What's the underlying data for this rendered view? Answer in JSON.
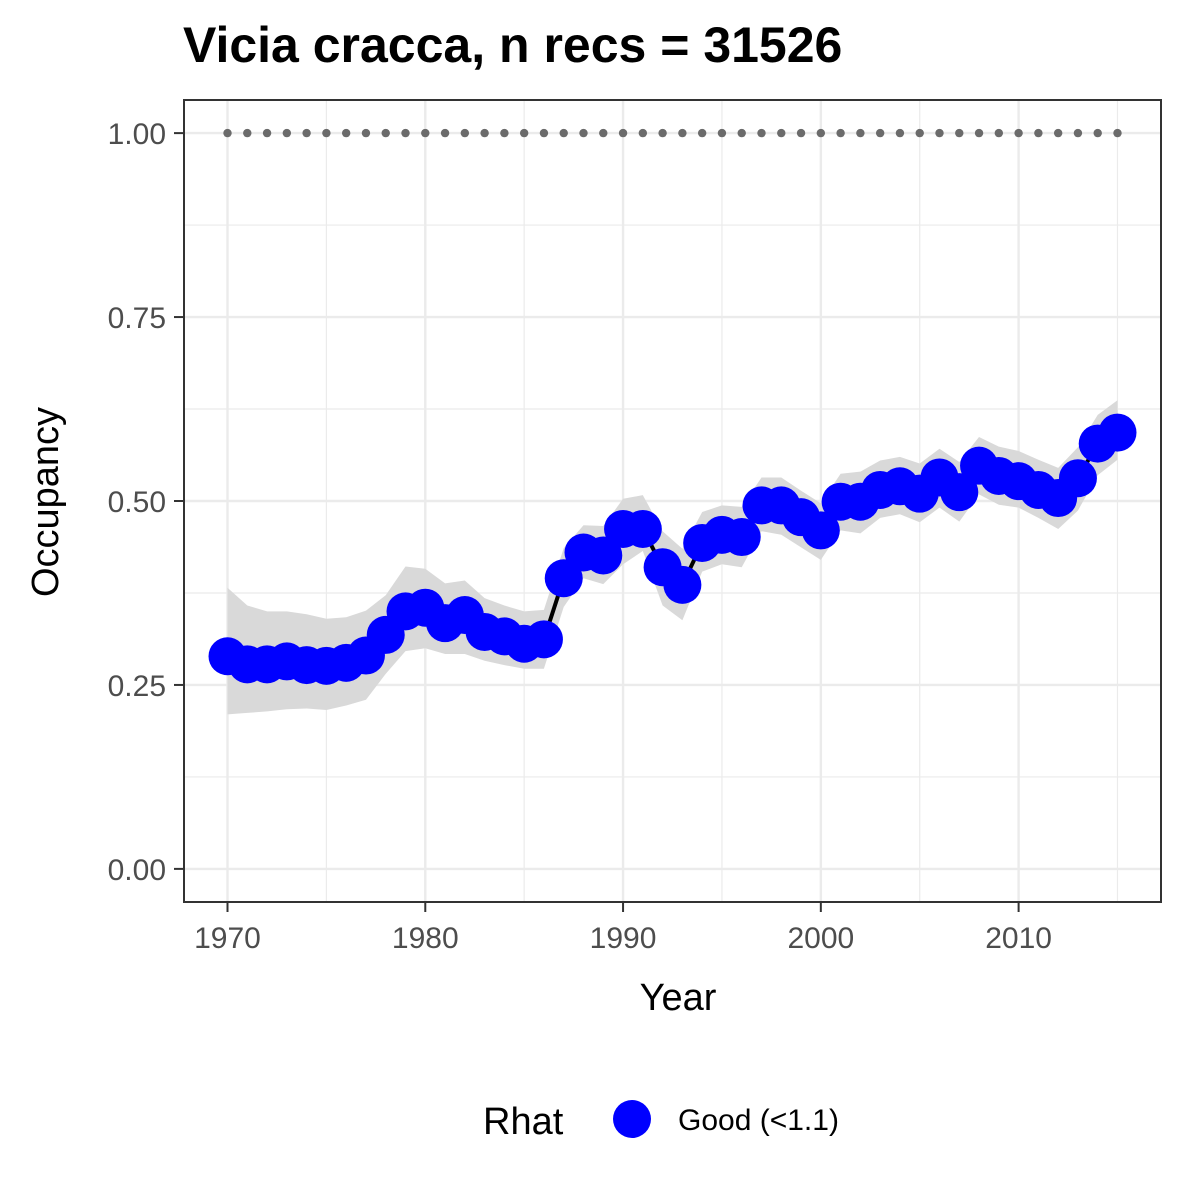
{
  "chart_data": {
    "type": "line",
    "title": "Vicia cracca, n recs = 31526",
    "xlabel": "Year",
    "ylabel": "Occupancy",
    "xlim": [
      1967.8,
      2017.2
    ],
    "ylim": [
      -0.045,
      1.045
    ],
    "x_ticks": [
      1970,
      1980,
      1990,
      2000,
      2010
    ],
    "x_tick_labels": [
      "1970",
      "1980",
      "1990",
      "2000",
      "2010"
    ],
    "y_ticks": [
      0,
      0.25,
      0.5,
      0.75,
      1.0
    ],
    "y_tick_labels": [
      "0.00",
      "0.25",
      "0.50",
      "0.75",
      "1.00"
    ],
    "grid": true,
    "legend": {
      "title": "Rhat",
      "position": "bottom",
      "entries": [
        {
          "label": "Good (<1.1)",
          "color": "#0000ff"
        }
      ]
    },
    "colors": {
      "points": "#0000ff",
      "line": "#000000",
      "ribbon": "#d9d9d9",
      "reference_dots": "#6b6b6b",
      "grid": "#ebebeb",
      "panel_border": "#333333"
    },
    "x": [
      1970,
      1971,
      1972,
      1973,
      1974,
      1975,
      1976,
      1977,
      1978,
      1979,
      1980,
      1981,
      1982,
      1983,
      1984,
      1985,
      1986,
      1987,
      1988,
      1989,
      1990,
      1991,
      1992,
      1993,
      1994,
      1995,
      1996,
      1997,
      1998,
      1999,
      2000,
      2001,
      2002,
      2003,
      2004,
      2005,
      2006,
      2007,
      2008,
      2009,
      2010,
      2011,
      2012,
      2013,
      2014,
      2015
    ],
    "series": [
      {
        "values": [
          0.289,
          0.278,
          0.278,
          0.282,
          0.277,
          0.276,
          0.28,
          0.29,
          0.318,
          0.35,
          0.355,
          0.334,
          0.345,
          0.322,
          0.316,
          0.306,
          0.312,
          0.395,
          0.43,
          0.426,
          0.462,
          0.462,
          0.41,
          0.386,
          0.443,
          0.454,
          0.451,
          0.494,
          0.494,
          0.478,
          0.46,
          0.499,
          0.499,
          0.515,
          0.52,
          0.51,
          0.532,
          0.512,
          0.548,
          0.534,
          0.527,
          0.515,
          0.504,
          0.531,
          0.578,
          0.593
        ],
        "lower": [
          0.21,
          0.212,
          0.214,
          0.217,
          0.218,
          0.216,
          0.222,
          0.23,
          0.265,
          0.296,
          0.3,
          0.292,
          0.292,
          0.283,
          0.277,
          0.272,
          0.272,
          0.356,
          0.395,
          0.387,
          0.414,
          0.432,
          0.358,
          0.338,
          0.404,
          0.414,
          0.41,
          0.459,
          0.454,
          0.437,
          0.42,
          0.46,
          0.456,
          0.477,
          0.482,
          0.471,
          0.491,
          0.472,
          0.509,
          0.495,
          0.491,
          0.477,
          0.462,
          0.487,
          0.535,
          0.556
        ],
        "upper": [
          0.382,
          0.358,
          0.35,
          0.35,
          0.346,
          0.34,
          0.342,
          0.351,
          0.372,
          0.411,
          0.408,
          0.388,
          0.392,
          0.368,
          0.358,
          0.35,
          0.352,
          0.436,
          0.467,
          0.466,
          0.503,
          0.508,
          0.459,
          0.435,
          0.485,
          0.494,
          0.492,
          0.532,
          0.532,
          0.514,
          0.497,
          0.537,
          0.54,
          0.555,
          0.56,
          0.551,
          0.571,
          0.553,
          0.587,
          0.574,
          0.568,
          0.556,
          0.545,
          0.573,
          0.617,
          0.637
        ]
      }
    ],
    "reference_line": {
      "y": 1.0,
      "x_from": 1970,
      "x_to": 2015,
      "style": "dotted"
    }
  }
}
